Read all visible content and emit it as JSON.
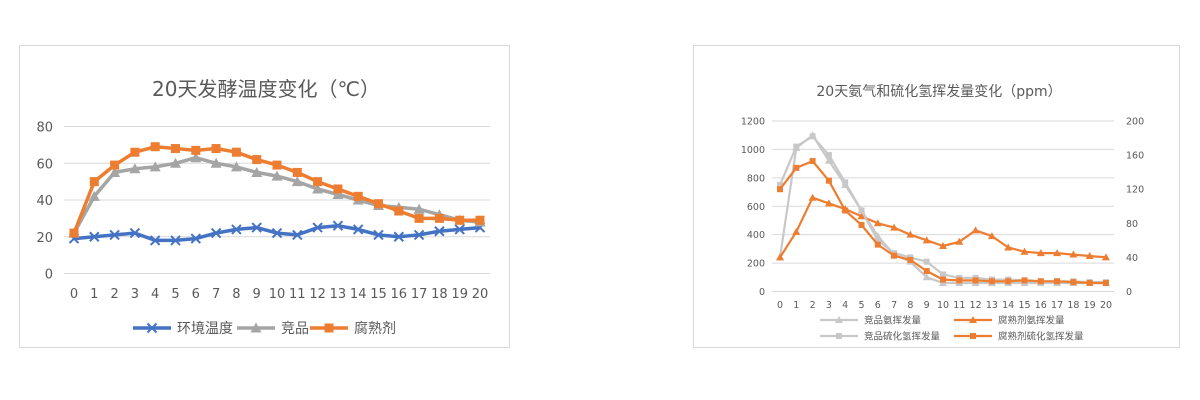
{
  "chart_data": [
    {
      "type": "line",
      "title": "20天发酵温度变化（℃）",
      "categories": [
        "0",
        "1",
        "2",
        "3",
        "4",
        "5",
        "6",
        "7",
        "8",
        "9",
        "10",
        "11",
        "12",
        "13",
        "14",
        "15",
        "16",
        "17",
        "18",
        "19",
        "20"
      ],
      "y_ticks": [
        "0",
        "20",
        "40",
        "60",
        "80"
      ],
      "ylim": [
        0,
        80
      ],
      "grid": true,
      "legend_position": "bottom",
      "series": [
        {
          "name": "环境温度",
          "color": "#4472c4",
          "marker": "x",
          "values": [
            19,
            20,
            21,
            22,
            18,
            18,
            19,
            22,
            24,
            25,
            22,
            21,
            25,
            26,
            24,
            21,
            20,
            21,
            23,
            24,
            25
          ]
        },
        {
          "name": "竞品",
          "color": "#a5a5a5",
          "marker": "triangle",
          "values": [
            22,
            42,
            55,
            57,
            58,
            60,
            63,
            60,
            58,
            55,
            53,
            50,
            46,
            43,
            40,
            37,
            36,
            35,
            32,
            29,
            28
          ]
        },
        {
          "name": "腐熟剂",
          "color": "#ed7d31",
          "marker": "square",
          "values": [
            22,
            50,
            59,
            66,
            69,
            68,
            67,
            68,
            66,
            62,
            59,
            55,
            50,
            46,
            42,
            38,
            34,
            30,
            30,
            29,
            29
          ]
        }
      ]
    },
    {
      "type": "line",
      "title": "20天氨气和硫化氢挥发量变化（ppm）",
      "categories": [
        "0",
        "1",
        "2",
        "3",
        "4",
        "5",
        "6",
        "7",
        "8",
        "9",
        "10",
        "11",
        "12",
        "13",
        "14",
        "15",
        "16",
        "17",
        "18",
        "19",
        "20"
      ],
      "y_ticks": [
        "0",
        "200",
        "400",
        "600",
        "800",
        "1000",
        "1200"
      ],
      "y2_ticks": [
        "0",
        "40",
        "80",
        "120",
        "160",
        "200"
      ],
      "ylim": [
        0,
        1200
      ],
      "y2lim": [
        0,
        200
      ],
      "grid": true,
      "legend_position": "bottom",
      "series": [
        {
          "name": "竞品氨挥发量",
          "axis": "left",
          "color": "#c8c8c8",
          "marker": "triangle",
          "values": [
            240,
            1010,
            1100,
            920,
            750,
            570,
            390,
            260,
            210,
            100,
            60,
            60,
            60,
            60,
            60,
            60,
            60,
            60,
            60,
            60,
            60
          ]
        },
        {
          "name": "腐熟剂氨挥发量",
          "axis": "left",
          "color": "#ed7d31",
          "marker": "triangle",
          "values": [
            240,
            420,
            660,
            620,
            580,
            530,
            480,
            450,
            400,
            360,
            320,
            350,
            430,
            390,
            310,
            280,
            270,
            270,
            260,
            250,
            240
          ]
        },
        {
          "name": "竞品硫化氢挥发量",
          "axis": "right",
          "color": "#c8c8c8",
          "marker": "square",
          "values": [
            125,
            170,
            182,
            160,
            128,
            95,
            60,
            45,
            40,
            35,
            20,
            16,
            16,
            14,
            14,
            13,
            12,
            12,
            12,
            11,
            11
          ]
        },
        {
          "name": "腐熟剂硫化氢挥发量",
          "axis": "right",
          "color": "#ed7d31",
          "marker": "square",
          "values": [
            120,
            145,
            153,
            130,
            95,
            78,
            55,
            42,
            37,
            24,
            14,
            13,
            13,
            12,
            12,
            13,
            12,
            12,
            11,
            10,
            10
          ]
        }
      ]
    }
  ]
}
